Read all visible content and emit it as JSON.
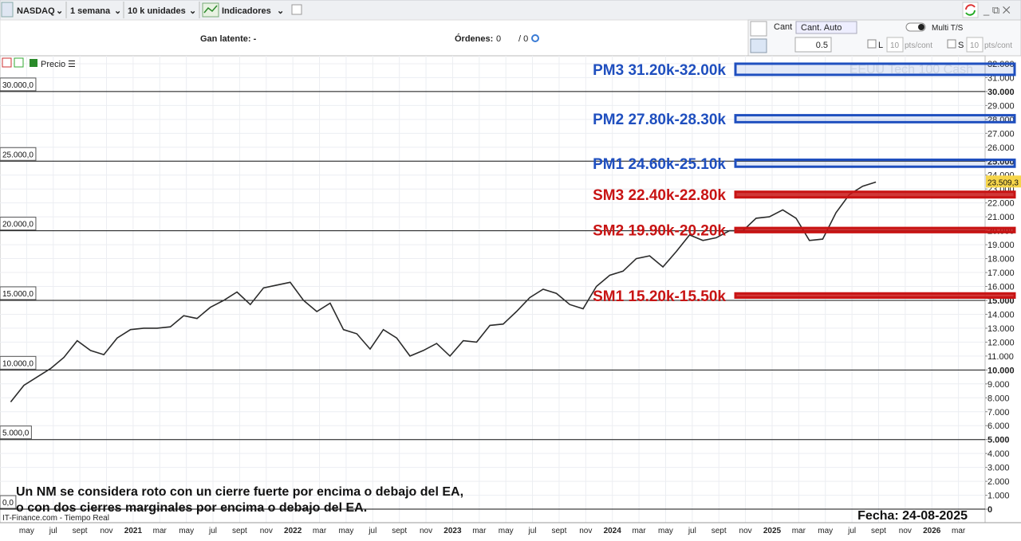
{
  "toolbar": {
    "symbol": "NASDAQ",
    "period": "1 semana",
    "units": "10 k unidades",
    "indicators": "Indicadores"
  },
  "status": {
    "unrealized": "Gan latente: -",
    "orders_label": "Órdenes:",
    "orders_a": "0",
    "orders_b": "/ 0"
  },
  "order_panel": {
    "qty": "Cant",
    "qty_auto": "Cant. Auto",
    "qty_value": "0.5",
    "multi": "Multi T/S",
    "l": "L",
    "s": "S",
    "pts_l": "10",
    "pts_s": "10",
    "pts_unit": "pts/cont"
  },
  "legend": {
    "price": "Precio"
  },
  "chart_data": {
    "type": "line",
    "watermark": "EEUU Tech 100 Cash",
    "source": "IT-Finance.com - Tiempo Real",
    "color": "#2b2b2b",
    "x": [
      "2020-03",
      "2020-04",
      "2020-05",
      "2020-06",
      "2020-07",
      "2020-08",
      "2020-09",
      "2020-10",
      "2020-11",
      "2020-12",
      "2021-01",
      "2021-02",
      "2021-03",
      "2021-04",
      "2021-05",
      "2021-06",
      "2021-07",
      "2021-08",
      "2021-09",
      "2021-10",
      "2021-11",
      "2021-12",
      "2022-01",
      "2022-02",
      "2022-03",
      "2022-04",
      "2022-05",
      "2022-06",
      "2022-07",
      "2022-08",
      "2022-09",
      "2022-10",
      "2022-11",
      "2022-12",
      "2023-01",
      "2023-02",
      "2023-03",
      "2023-04",
      "2023-05",
      "2023-06",
      "2023-07",
      "2023-08",
      "2023-09",
      "2023-10",
      "2023-11",
      "2023-12",
      "2024-01",
      "2024-02",
      "2024-03",
      "2024-04",
      "2024-05",
      "2024-06",
      "2024-07",
      "2024-08",
      "2024-09",
      "2024-10",
      "2024-11",
      "2024-12",
      "2025-01",
      "2025-02",
      "2025-03",
      "2025-04",
      "2025-05",
      "2025-06",
      "2025-07",
      "2025-08"
    ],
    "values": [
      7700,
      8900,
      9500,
      10100,
      10900,
      12100,
      11400,
      11100,
      12300,
      12900,
      13000,
      13000,
      13100,
      13900,
      13700,
      14500,
      15000,
      15600,
      14700,
      15900,
      16100,
      16300,
      15000,
      14200,
      14800,
      12900,
      12600,
      11500,
      12900,
      12300,
      11000,
      11400,
      11900,
      11000,
      12100,
      12000,
      13200,
      13300,
      14200,
      15200,
      15800,
      15500,
      14700,
      14400,
      16000,
      16800,
      17100,
      18000,
      18200,
      17400,
      18500,
      19700,
      19300,
      19500,
      20000,
      20000,
      20900,
      21000,
      21500,
      20900,
      19300,
      19400,
      21300,
      22600,
      23200,
      23500
    ],
    "last_price": {
      "value": 23509.3,
      "label": "23.509,3"
    },
    "xlim": [
      "2020-03",
      "2026-05"
    ],
    "ylim": [
      -970,
      32570
    ],
    "xticks": [
      {
        "value": "2020-05",
        "label": "may"
      },
      {
        "value": "2020-07",
        "label": "jul"
      },
      {
        "value": "2020-09",
        "label": "sept"
      },
      {
        "value": "2020-11",
        "label": "nov"
      },
      {
        "value": "2021-01",
        "label": "2021"
      },
      {
        "value": "2021-03",
        "label": "mar"
      },
      {
        "value": "2021-05",
        "label": "may"
      },
      {
        "value": "2021-07",
        "label": "jul"
      },
      {
        "value": "2021-09",
        "label": "sept"
      },
      {
        "value": "2021-11",
        "label": "nov"
      },
      {
        "value": "2022-01",
        "label": "2022"
      },
      {
        "value": "2022-03",
        "label": "mar"
      },
      {
        "value": "2022-05",
        "label": "may"
      },
      {
        "value": "2022-07",
        "label": "jul"
      },
      {
        "value": "2022-09",
        "label": "sept"
      },
      {
        "value": "2022-11",
        "label": "nov"
      },
      {
        "value": "2023-01",
        "label": "2023"
      },
      {
        "value": "2023-03",
        "label": "mar"
      },
      {
        "value": "2023-05",
        "label": "may"
      },
      {
        "value": "2023-07",
        "label": "jul"
      },
      {
        "value": "2023-09",
        "label": "sept"
      },
      {
        "value": "2023-11",
        "label": "nov"
      },
      {
        "value": "2024-01",
        "label": "2024"
      },
      {
        "value": "2024-03",
        "label": "mar"
      },
      {
        "value": "2024-05",
        "label": "may"
      },
      {
        "value": "2024-07",
        "label": "jul"
      },
      {
        "value": "2024-09",
        "label": "sept"
      },
      {
        "value": "2024-11",
        "label": "nov"
      },
      {
        "value": "2025-01",
        "label": "2025"
      },
      {
        "value": "2025-03",
        "label": "mar"
      },
      {
        "value": "2025-05",
        "label": "may"
      },
      {
        "value": "2025-07",
        "label": "jul"
      },
      {
        "value": "2025-09",
        "label": "sept"
      },
      {
        "value": "2025-11",
        "label": "nov"
      },
      {
        "value": "2026-01",
        "label": "2026"
      },
      {
        "value": "2026-03",
        "label": "mar"
      }
    ],
    "yticks": [
      {
        "value": 0,
        "label": "0"
      },
      {
        "value": 1000,
        "label": "1.000"
      },
      {
        "value": 2000,
        "label": "2.000"
      },
      {
        "value": 3000,
        "label": "3.000"
      },
      {
        "value": 4000,
        "label": "4.000"
      },
      {
        "value": 5000,
        "label": "5.000"
      },
      {
        "value": 6000,
        "label": "6.000"
      },
      {
        "value": 7000,
        "label": "7.000"
      },
      {
        "value": 8000,
        "label": "8.000"
      },
      {
        "value": 9000,
        "label": "9.000"
      },
      {
        "value": 10000,
        "label": "10.000"
      },
      {
        "value": 11000,
        "label": "11.000"
      },
      {
        "value": 12000,
        "label": "12.000"
      },
      {
        "value": 13000,
        "label": "13.000"
      },
      {
        "value": 14000,
        "label": "14.000"
      },
      {
        "value": 15000,
        "label": "15.000"
      },
      {
        "value": 16000,
        "label": "16.000"
      },
      {
        "value": 17000,
        "label": "17.000"
      },
      {
        "value": 18000,
        "label": "18.000"
      },
      {
        "value": 19000,
        "label": "19.000"
      },
      {
        "value": 20000,
        "label": "20.000"
      },
      {
        "value": 21000,
        "label": "21.000"
      },
      {
        "value": 22000,
        "label": "22.000"
      },
      {
        "value": 23000,
        "label": "23.000"
      },
      {
        "value": 24000,
        "label": "24.000"
      },
      {
        "value": 25000,
        "label": "25.000"
      },
      {
        "value": 26000,
        "label": "26.000"
      },
      {
        "value": 27000,
        "label": "27.000"
      },
      {
        "value": 28000,
        "label": "28.000"
      },
      {
        "value": 29000,
        "label": "29.000"
      },
      {
        "value": 30000,
        "label": "30.000"
      },
      {
        "value": 31000,
        "label": "31.000"
      },
      {
        "value": 32000,
        "label": "32.000"
      }
    ],
    "hlines": [
      {
        "value": 0,
        "label": "0,0"
      },
      {
        "value": 5000,
        "label": "5.000,0"
      },
      {
        "value": 10000,
        "label": "10.000,0"
      },
      {
        "value": 15000,
        "label": "15.000,0"
      },
      {
        "value": 20000,
        "label": "20.000,0"
      },
      {
        "value": 25000,
        "label": "25.000,0"
      },
      {
        "value": 30000,
        "label": "30.000,0"
      }
    ],
    "grid": true,
    "zones": [
      {
        "name": "PM3 31.20k-32.00k",
        "low": 31200,
        "high": 32000,
        "color": "#1f4fbf"
      },
      {
        "name": "PM2 27.80k-28.30k",
        "low": 27800,
        "high": 28300,
        "color": "#1f4fbf"
      },
      {
        "name": "PM1 24.60k-25.10k",
        "low": 24600,
        "high": 25100,
        "color": "#1f4fbf"
      },
      {
        "name": "SM3 22.40k-22.80k",
        "low": 22400,
        "high": 22800,
        "color": "#c81414"
      },
      {
        "name": "SM2 19.90k-20.20k",
        "low": 19900,
        "high": 20200,
        "color": "#c81414"
      },
      {
        "name": "SM1 15.20k-15.50k",
        "low": 15200,
        "high": 15500,
        "color": "#c81414"
      }
    ],
    "annotation": [
      "Un NM se considera roto con un cierre fuerte por encima o debajo del EA,",
      "o con dos cierres marginales por encima o debajo del EA."
    ],
    "date": "Fecha: 24-08-2025"
  }
}
